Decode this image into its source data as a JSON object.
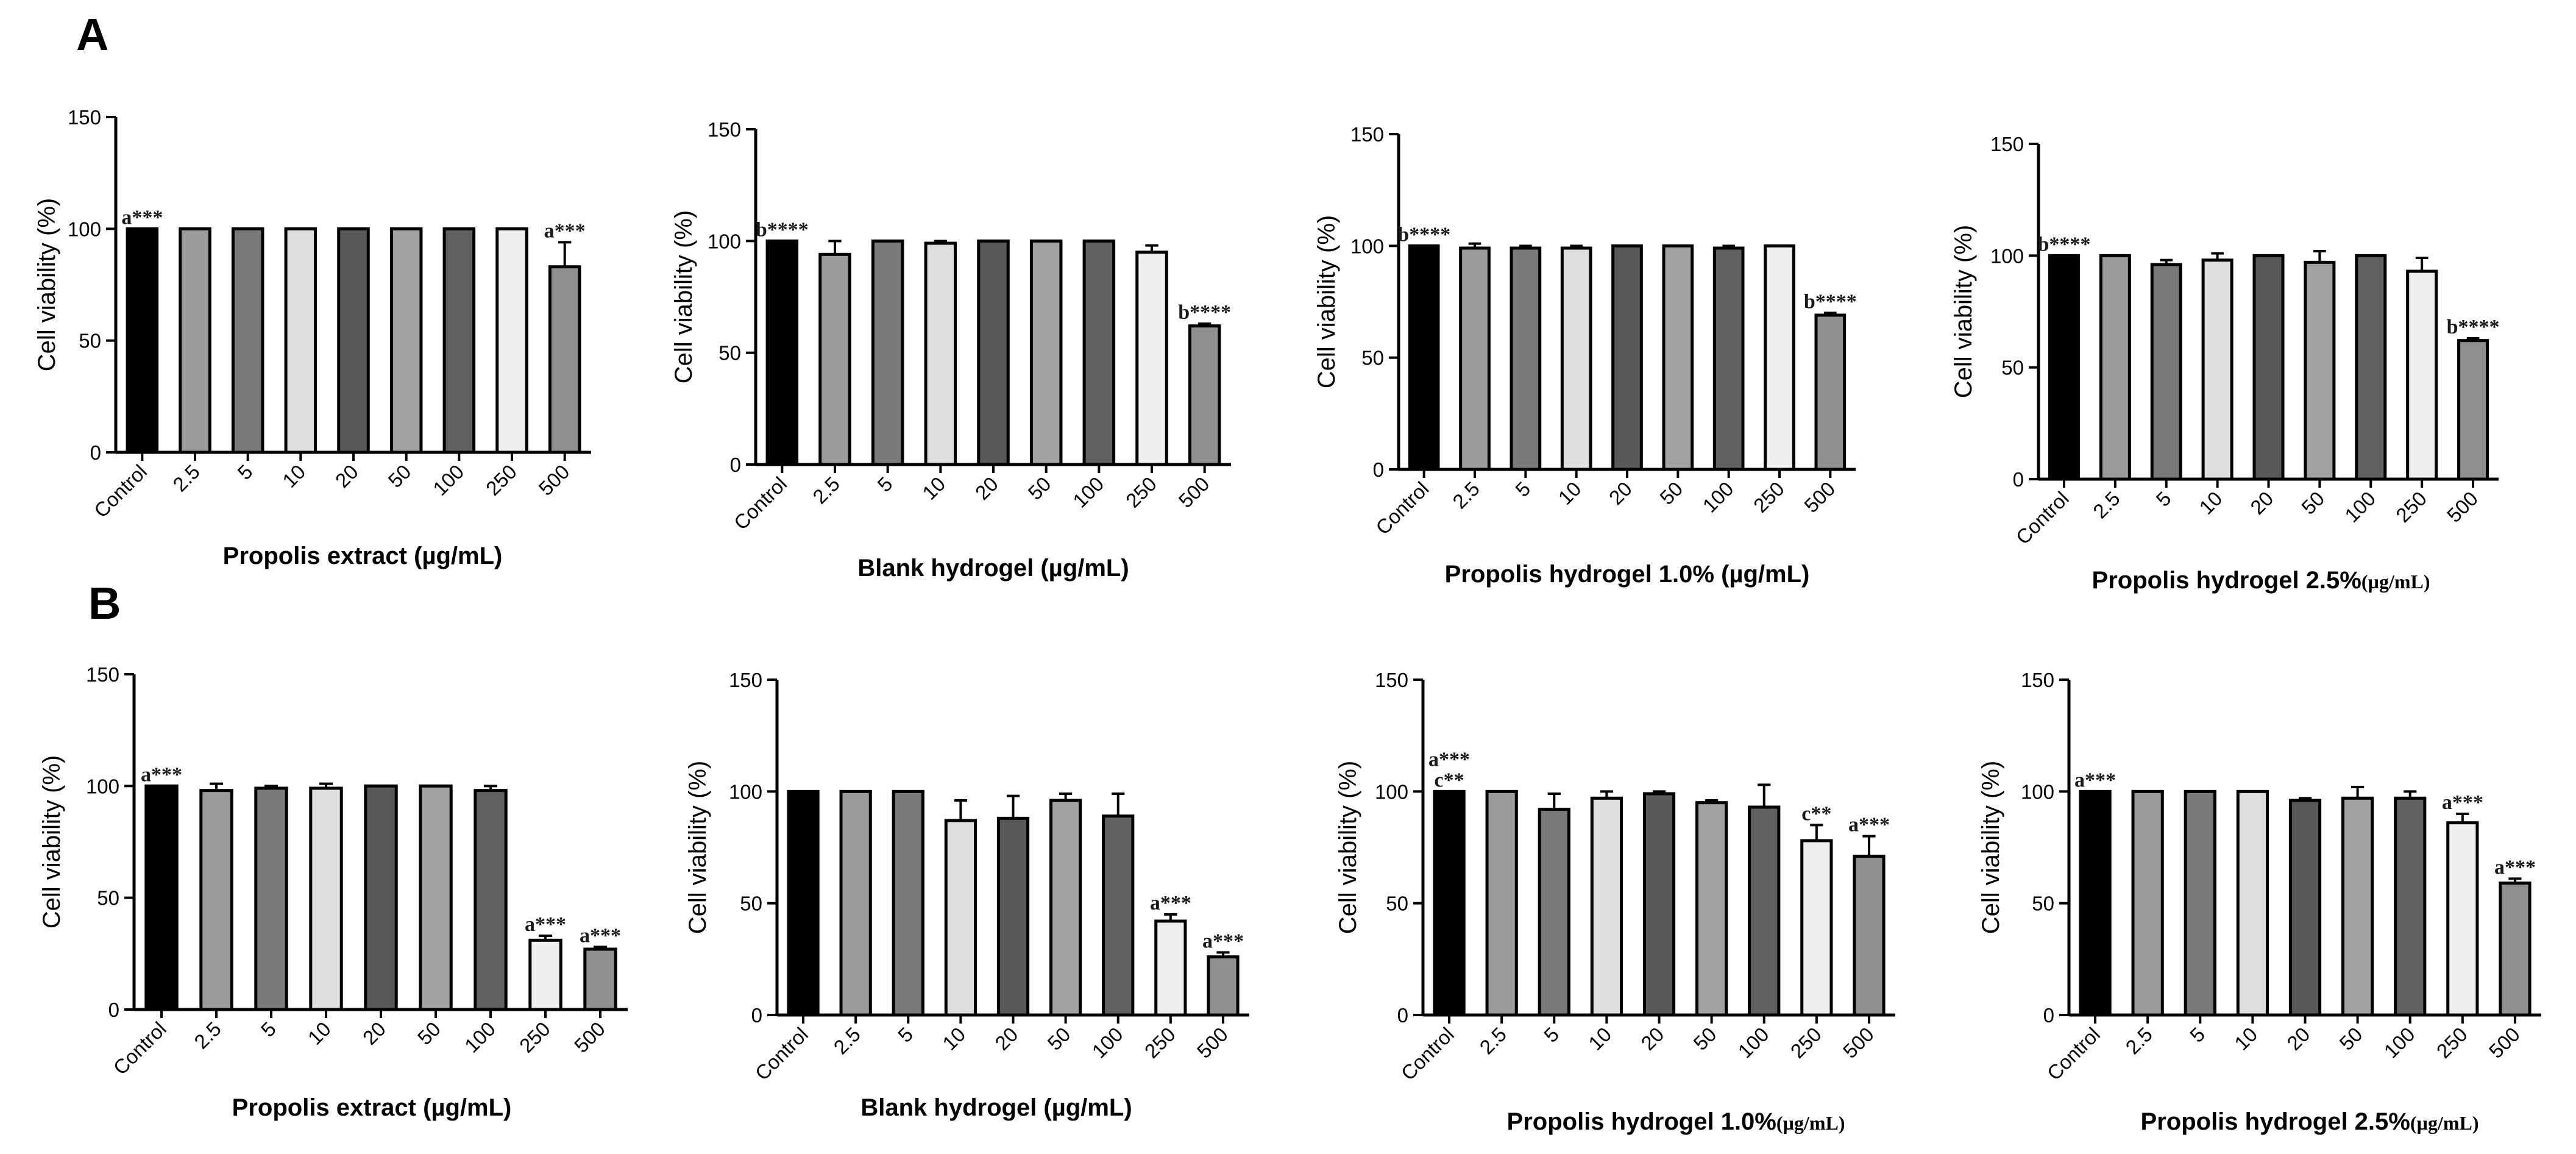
{
  "figure": {
    "panel_labels": [
      "A",
      "B"
    ]
  },
  "colors": {
    "Control": "#000000",
    "2.5": "#9c9c9c",
    "5": "#7a7a7a",
    "10": "#dedede",
    "20": "#585858",
    "50": "#a2a2a2",
    "100": "#606060",
    "250": "#efefef",
    "500": "#8f8f8f"
  },
  "chart_data": [
    {
      "type": "bar",
      "panel": "A",
      "title": "",
      "xlabel": "Propolis extract (µg/mL)",
      "xlabel_unit_serif": "",
      "ylabel": "Cell viability (%)",
      "ylim": [
        0,
        150
      ],
      "yticks": [
        0,
        50,
        100,
        150
      ],
      "grid": false,
      "categories": [
        "Control",
        "2.5",
        "5",
        "10",
        "20",
        "50",
        "100",
        "250",
        "500"
      ],
      "values": [
        100,
        100,
        100,
        100,
        100,
        100,
        100,
        100,
        83
      ],
      "errors": [
        0,
        0,
        0,
        0,
        0,
        0,
        0,
        0,
        11
      ],
      "annotations": [
        {
          "index": 0,
          "lines": [
            "a***"
          ]
        },
        {
          "index": 8,
          "lines": [
            "a***"
          ]
        }
      ]
    },
    {
      "type": "bar",
      "panel": "A",
      "title": "",
      "xlabel": "Blank hydrogel (µg/mL)",
      "xlabel_unit_serif": "",
      "ylabel": "Cell viability (%)",
      "ylim": [
        0,
        150
      ],
      "yticks": [
        0,
        50,
        100,
        150
      ],
      "grid": false,
      "categories": [
        "Control",
        "2.5",
        "5",
        "10",
        "20",
        "50",
        "100",
        "250",
        "500"
      ],
      "values": [
        100,
        94,
        100,
        99,
        100,
        100,
        100,
        95,
        62
      ],
      "errors": [
        0,
        6,
        0,
        1,
        0,
        0,
        0,
        3,
        1
      ],
      "annotations": [
        {
          "index": 0,
          "lines": [
            "b****"
          ]
        },
        {
          "index": 8,
          "lines": [
            "b****"
          ]
        }
      ]
    },
    {
      "type": "bar",
      "panel": "A",
      "title": "",
      "xlabel": "Propolis hydrogel 1.0% (µg/mL)",
      "xlabel_unit_serif": "",
      "ylabel": "Cell viability (%)",
      "ylim": [
        0,
        150
      ],
      "yticks": [
        0,
        50,
        100,
        150
      ],
      "grid": false,
      "categories": [
        "Control",
        "2.5",
        "5",
        "10",
        "20",
        "50",
        "100",
        "250",
        "500"
      ],
      "values": [
        100,
        99,
        99,
        99,
        100,
        100,
        99,
        100,
        69
      ],
      "errors": [
        0,
        2,
        1,
        1,
        0,
        0,
        1,
        0,
        1
      ],
      "annotations": [
        {
          "index": 0,
          "lines": [
            "b****"
          ]
        },
        {
          "index": 8,
          "lines": [
            "b****"
          ]
        }
      ]
    },
    {
      "type": "bar",
      "panel": "A",
      "title": "",
      "xlabel": "Propolis hydrogel 2.5%",
      "xlabel_unit_serif": "(µg/mL)",
      "ylabel": "Cell viability (%)",
      "ylim": [
        0,
        150
      ],
      "yticks": [
        0,
        50,
        100,
        150
      ],
      "grid": false,
      "categories": [
        "Control",
        "2.5",
        "5",
        "10",
        "20",
        "50",
        "100",
        "250",
        "500"
      ],
      "values": [
        100,
        100,
        96,
        98,
        100,
        97,
        100,
        93,
        62
      ],
      "errors": [
        0,
        0,
        2,
        3,
        0,
        5,
        0,
        6,
        1
      ],
      "annotations": [
        {
          "index": 0,
          "lines": [
            "b****"
          ]
        },
        {
          "index": 8,
          "lines": [
            "b****"
          ]
        }
      ]
    },
    {
      "type": "bar",
      "panel": "B",
      "title": "",
      "xlabel": "Propolis extract (µg/mL)",
      "xlabel_unit_serif": "",
      "ylabel": "Cell viability (%)",
      "ylim": [
        0,
        150
      ],
      "yticks": [
        0,
        50,
        100,
        150
      ],
      "grid": false,
      "categories": [
        "Control",
        "2.5",
        "5",
        "10",
        "20",
        "50",
        "100",
        "250",
        "500"
      ],
      "values": [
        100,
        98,
        99,
        99,
        100,
        100,
        98,
        31,
        27
      ],
      "errors": [
        0,
        3,
        1,
        2,
        0,
        0,
        2,
        2,
        1
      ],
      "annotations": [
        {
          "index": 0,
          "lines": [
            "a***"
          ]
        },
        {
          "index": 7,
          "lines": [
            "a***"
          ]
        },
        {
          "index": 8,
          "lines": [
            "a***"
          ]
        }
      ]
    },
    {
      "type": "bar",
      "panel": "B",
      "title": "",
      "xlabel": "Blank hydrogel (µg/mL)",
      "xlabel_unit_serif": "",
      "ylabel": "Cell viability (%)",
      "ylim": [
        0,
        150
      ],
      "yticks": [
        0,
        50,
        100,
        150
      ],
      "grid": false,
      "categories": [
        "Control",
        "2.5",
        "5",
        "10",
        "20",
        "50",
        "100",
        "250",
        "500"
      ],
      "values": [
        100,
        100,
        100,
        87,
        88,
        96,
        89,
        42,
        26
      ],
      "errors": [
        0,
        0,
        0,
        9,
        10,
        3,
        10,
        3,
        2
      ],
      "annotations": [
        {
          "index": 7,
          "lines": [
            "a***"
          ]
        },
        {
          "index": 8,
          "lines": [
            "a***"
          ]
        }
      ]
    },
    {
      "type": "bar",
      "panel": "B",
      "title": "",
      "xlabel": "Propolis hydrogel 1.0%",
      "xlabel_unit_serif": "(µg/mL)",
      "ylabel": "Cell viability (%)",
      "ylim": [
        0,
        150
      ],
      "yticks": [
        0,
        50,
        100,
        150
      ],
      "grid": false,
      "categories": [
        "Control",
        "2.5",
        "5",
        "10",
        "20",
        "50",
        "100",
        "250",
        "500"
      ],
      "values": [
        100,
        100,
        92,
        97,
        99,
        95,
        93,
        78,
        71
      ],
      "errors": [
        0,
        0,
        7,
        3,
        1,
        1,
        10,
        7,
        9
      ],
      "annotations": [
        {
          "index": 0,
          "lines": [
            "a***",
            "c**"
          ]
        },
        {
          "index": 7,
          "lines": [
            "c**"
          ]
        },
        {
          "index": 8,
          "lines": [
            "a***"
          ]
        }
      ]
    },
    {
      "type": "bar",
      "panel": "B",
      "title": "",
      "xlabel": "Propolis hydrogel 2.5%",
      "xlabel_unit_serif": "(µg/mL)",
      "ylabel": "Cell viability (%)",
      "ylim": [
        0,
        150
      ],
      "yticks": [
        0,
        50,
        100,
        150
      ],
      "grid": false,
      "categories": [
        "Control",
        "2.5",
        "5",
        "10",
        "20",
        "50",
        "100",
        "250",
        "500"
      ],
      "values": [
        100,
        100,
        100,
        100,
        96,
        97,
        97,
        86,
        59
      ],
      "errors": [
        0,
        0,
        0,
        0,
        1,
        5,
        3,
        4,
        2
      ],
      "annotations": [
        {
          "index": 0,
          "lines": [
            "a***"
          ]
        },
        {
          "index": 7,
          "lines": [
            "a***"
          ]
        },
        {
          "index": 8,
          "lines": [
            "a***"
          ]
        }
      ]
    }
  ]
}
